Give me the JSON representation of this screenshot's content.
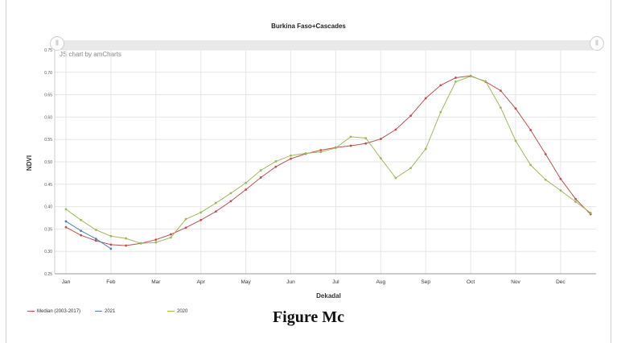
{
  "figure_caption": "Figure Mc",
  "credit": "JS chart by amCharts",
  "colors": {
    "median": "#c0504d",
    "y2021": "#4f81bd",
    "y2020": "#9bbb59",
    "grid": "#e6e6e6",
    "axis": "#999999"
  },
  "chart_data": {
    "type": "line",
    "title": "Burkina Faso+Cascades",
    "xlabel": "Dekadal",
    "ylabel": "NDVI",
    "ylim": [
      0.25,
      0.75
    ],
    "y_ticks": [
      "0.25",
      "0.30",
      "0.35",
      "0.40",
      "0.45",
      "0.50",
      "0.55",
      "0.60",
      "0.65",
      "0.70",
      "0.75"
    ],
    "x_ticks": [
      "Jan",
      "Feb",
      "Mar",
      "Apr",
      "May",
      "Jun",
      "Jul",
      "Aug",
      "Sep",
      "Oct",
      "Nov",
      "Dec"
    ],
    "dekads_per_month": 3,
    "grid": true,
    "legend_position": "bottom-left",
    "series": [
      {
        "name": "Median (2003-2017)",
        "color": "#c0504d",
        "values": [
          0.354,
          0.336,
          0.324,
          0.315,
          0.313,
          0.318,
          0.326,
          0.338,
          0.353,
          0.37,
          0.389,
          0.412,
          0.438,
          0.465,
          0.489,
          0.507,
          0.518,
          0.526,
          0.532,
          0.536,
          0.541,
          0.551,
          0.572,
          0.603,
          0.642,
          0.671,
          0.688,
          0.692,
          0.679,
          0.659,
          0.619,
          0.571,
          0.517,
          0.462,
          0.417,
          0.383
        ]
      },
      {
        "name": "2021",
        "color": "#4f81bd",
        "values": [
          0.367,
          0.346,
          0.328,
          0.306
        ]
      },
      {
        "name": "2020",
        "color": "#9bbb59",
        "values": [
          0.394,
          0.37,
          0.348,
          0.334,
          0.329,
          0.318,
          0.32,
          0.331,
          0.372,
          0.387,
          0.408,
          0.43,
          0.453,
          0.481,
          0.501,
          0.514,
          0.519,
          0.522,
          0.531,
          0.556,
          0.553,
          0.508,
          0.464,
          0.486,
          0.529,
          0.611,
          0.679,
          0.691,
          0.68,
          0.621,
          0.547,
          0.493,
          0.46,
          0.436,
          0.411,
          0.386
        ]
      }
    ]
  }
}
